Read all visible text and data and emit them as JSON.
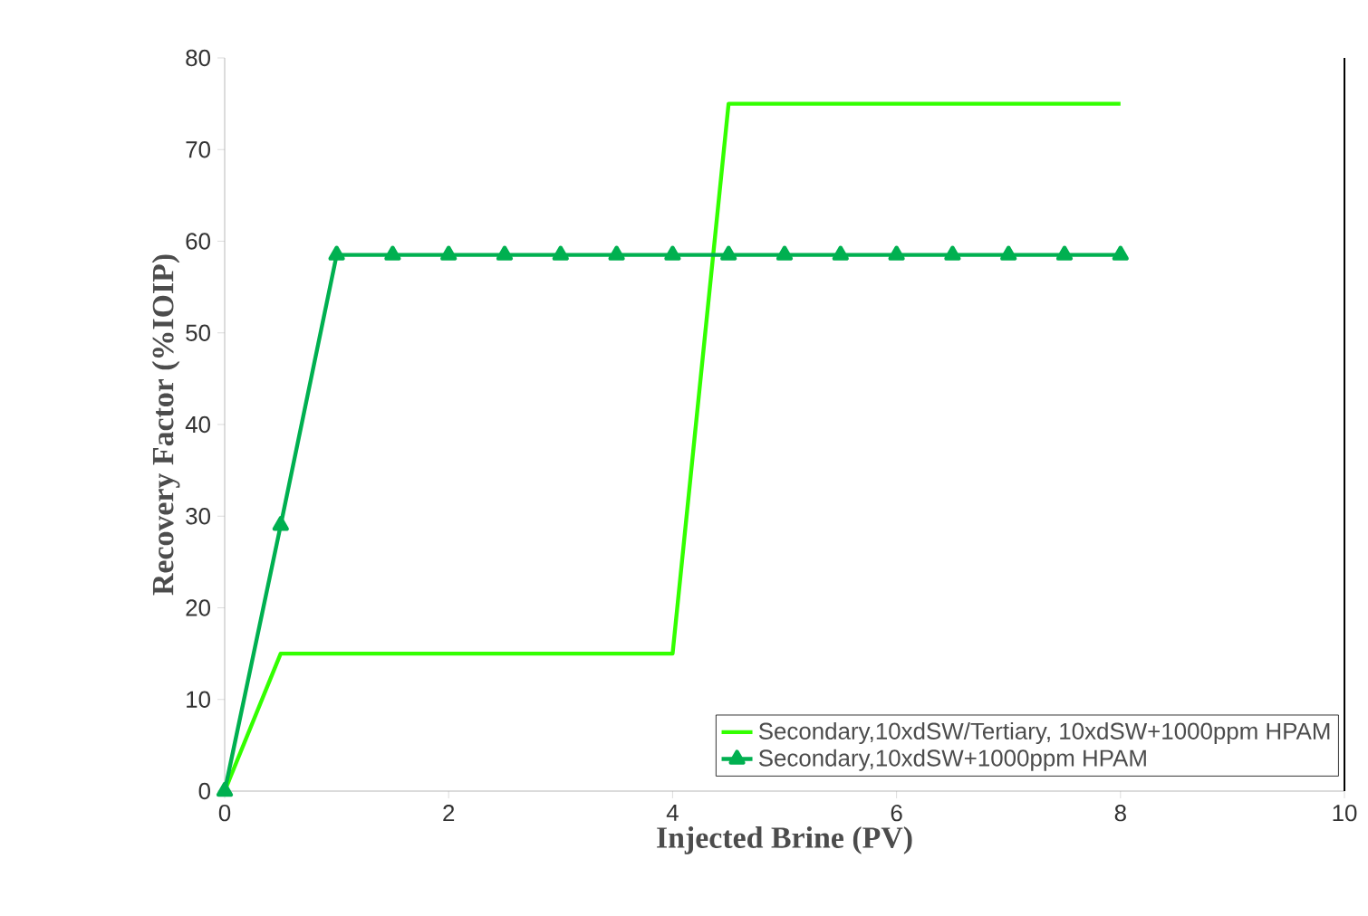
{
  "chart_data": {
    "type": "line",
    "xlabel": "Injected Brine (PV)",
    "ylabel": "Recovery Factor (%IOIP)",
    "xlim": [
      0,
      10
    ],
    "ylim": [
      0,
      80
    ],
    "xticks": [
      0,
      2,
      4,
      6,
      8,
      10
    ],
    "yticks": [
      0,
      10,
      20,
      30,
      40,
      50,
      60,
      70,
      80
    ],
    "grid": false,
    "legend": "bottom right",
    "series": [
      {
        "name": "Secondary,10xdSW/Tertiary, 10xdSW+1000ppm HPAM",
        "color": "#33ff00",
        "marker": "none",
        "x": [
          0,
          0.5,
          4,
          4.5,
          8
        ],
        "values": [
          0,
          15,
          15,
          75,
          75
        ]
      },
      {
        "name": "Secondary,10xdSW+1000ppm HPAM",
        "color": "#00b050",
        "marker": "triangle",
        "x": [
          0,
          0.5,
          1,
          1.5,
          2,
          2.5,
          3,
          3.5,
          4,
          4.5,
          5,
          5.5,
          6,
          6.5,
          7,
          7.5,
          8
        ],
        "values": [
          0,
          29,
          58.5,
          58.5,
          58.5,
          58.5,
          58.5,
          58.5,
          58.5,
          58.5,
          58.5,
          58.5,
          58.5,
          58.5,
          58.5,
          58.5,
          58.5
        ]
      }
    ]
  }
}
